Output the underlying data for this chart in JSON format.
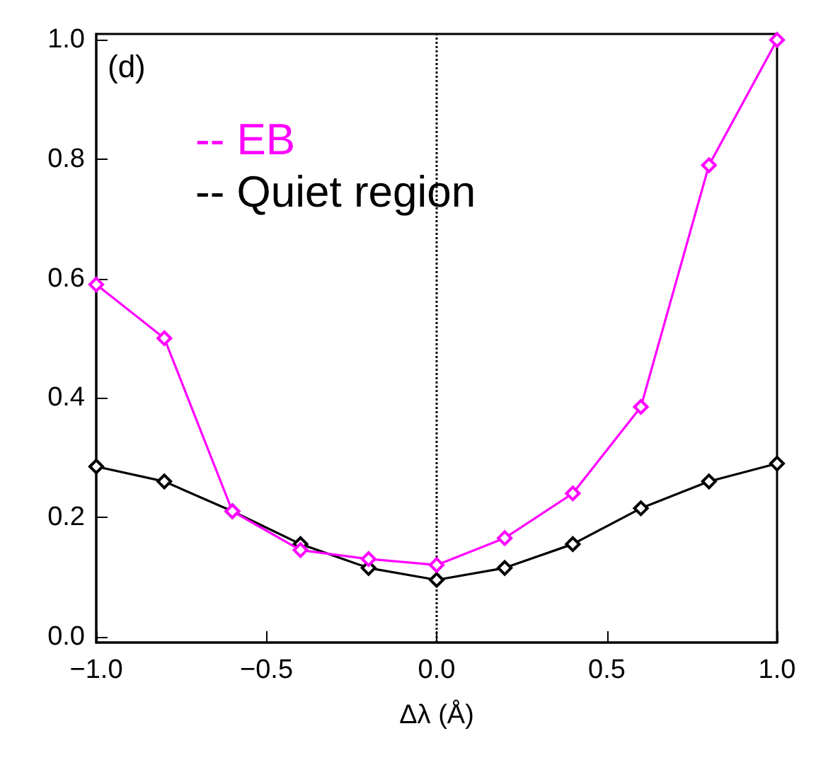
{
  "chart_data": {
    "type": "line",
    "xlabel": "Δλ (Å)",
    "annotations": [
      "(d)"
    ],
    "x": [
      -1.0,
      -0.8,
      -0.6,
      -0.4,
      -0.2,
      0.0,
      0.2,
      0.4,
      0.6,
      0.8,
      1.0
    ],
    "series": [
      {
        "name": "-- EB",
        "color": "#ff00ff",
        "values": [
          0.59,
          0.5,
          0.21,
          0.145,
          0.13,
          0.12,
          0.165,
          0.24,
          0.385,
          0.79,
          1.0
        ]
      },
      {
        "name": "-- Quiet region",
        "color": "#000000",
        "values": [
          0.285,
          0.26,
          0.21,
          0.155,
          0.115,
          0.095,
          0.115,
          0.155,
          0.215,
          0.26,
          0.29
        ]
      }
    ],
    "xlim": [
      -1.0,
      1.0
    ],
    "ylim": [
      -0.01,
      1.01
    ],
    "xticks": [
      {
        "value": -1.0,
        "label": "−1.0"
      },
      {
        "value": -0.5,
        "label": "−0.5"
      },
      {
        "value": 0,
        "label": "0.0"
      },
      {
        "value": 0.5,
        "label": "0.5"
      },
      {
        "value": 1.0,
        "label": "1.0"
      }
    ],
    "yticks": [
      {
        "value": 0,
        "label": "0.0"
      },
      {
        "value": 0.2,
        "label": "0.2"
      },
      {
        "value": 0.4,
        "label": "0.4"
      },
      {
        "value": 0.6,
        "label": "0.6"
      },
      {
        "value": 0.8,
        "label": "0.8"
      },
      {
        "value": 1.0,
        "label": "1.0"
      }
    ],
    "ref_lines": [
      {
        "axis": "x",
        "value": 0,
        "line_style": "dotted",
        "color": "#000000"
      }
    ],
    "marker": "diamond",
    "line_style": "solid",
    "legend": "top left",
    "grid": false
  }
}
